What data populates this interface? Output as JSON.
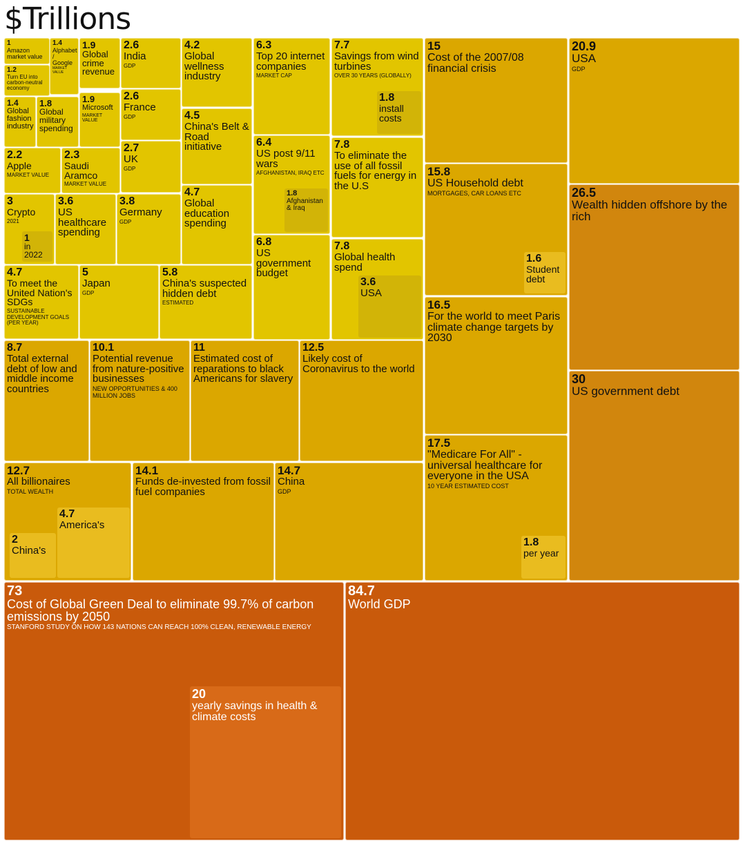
{
  "title": "$Trillions",
  "chart_data": {
    "type": "treemap",
    "unit": "$Trillions",
    "colors": {
      "light": "#e2c500",
      "mid": "#dba700",
      "deep": "#d1860d",
      "dark": "#c95a0b",
      "sub": "#e9bc1f",
      "sub_dark": "#d86a18"
    },
    "items": [
      {
        "value": "1",
        "label": "Amazon market value",
        "note": ""
      },
      {
        "value": "1.4",
        "label": "Alphabet / Google",
        "note": "market value"
      },
      {
        "value": "1.2",
        "label": "Turn EU into carbon-neutral economy",
        "note": ""
      },
      {
        "value": "1.4",
        "label": "Global fashion industry",
        "note": ""
      },
      {
        "value": "1.8",
        "label": "Global military spending",
        "note": ""
      },
      {
        "value": "1.9",
        "label": "Global crime revenue",
        "note": ""
      },
      {
        "value": "1.9",
        "label": "Microsoft",
        "note": "market value"
      },
      {
        "value": "2.6",
        "label": "India",
        "note": "GDP"
      },
      {
        "value": "2.6",
        "label": "France",
        "note": "GDP"
      },
      {
        "value": "2.7",
        "label": "UK",
        "note": "GDP"
      },
      {
        "value": "2.2",
        "label": "Apple",
        "note": "market value"
      },
      {
        "value": "2.3",
        "label": "Saudi Aramco",
        "note": "market value"
      },
      {
        "value": "3",
        "label": "Crypto",
        "note": "2021",
        "sub": {
          "value": "1",
          "label": "in 2022"
        }
      },
      {
        "value": "3.6",
        "label": "US healthcare spending",
        "note": ""
      },
      {
        "value": "3.8",
        "label": "Germany",
        "note": "GDP"
      },
      {
        "value": "4.2",
        "label": "Global wellness industry",
        "note": ""
      },
      {
        "value": "4.5",
        "label": "China's Belt & Road initiative",
        "note": ""
      },
      {
        "value": "4.7",
        "label": "Global education spending",
        "note": ""
      },
      {
        "value": "6.3",
        "label": "Top 20 internet companies",
        "note": "market cap"
      },
      {
        "value": "6.4",
        "label": "US post 9/11 wars",
        "note": "Afghanistan, Iraq etc",
        "sub": {
          "value": "1.8",
          "label": "Afghanistan & Iraq"
        }
      },
      {
        "value": "6.8",
        "label": "US government budget",
        "note": ""
      },
      {
        "value": "7.7",
        "label": "Savings from wind turbines",
        "note": "over 30 years (globally)",
        "sub": {
          "value": "1.8",
          "label": "install costs"
        }
      },
      {
        "value": "7.8",
        "label": "To eliminate the use of all fossil fuels for energy in the U.S",
        "note": ""
      },
      {
        "value": "7.8",
        "label": "Global health spend",
        "note": "",
        "sub": {
          "value": "3.6",
          "label": "USA"
        }
      },
      {
        "value": "4.7",
        "label": "To meet the United Nation's SDGs",
        "note": "sustainable development goals (per year)"
      },
      {
        "value": "5",
        "label": "Japan",
        "note": "GDP"
      },
      {
        "value": "5.8",
        "label": "China's suspected hidden debt",
        "note": "estimated"
      },
      {
        "value": "8.7",
        "label": "Total external debt of low and middle income countries",
        "note": ""
      },
      {
        "value": "10.1",
        "label": "Potential revenue from nature-positive businesses",
        "note": "new opportunities & 400 million jobs"
      },
      {
        "value": "11",
        "label": "Estimated cost of reparations to black Americans for slavery",
        "note": ""
      },
      {
        "value": "12.5",
        "label": "Likely cost of Coronavirus to the world",
        "note": ""
      },
      {
        "value": "12.7",
        "label": "All billionaires",
        "note": "total wealth",
        "subs": [
          {
            "value": "4.7",
            "label": "America's"
          },
          {
            "value": "2",
            "label": "China's"
          }
        ]
      },
      {
        "value": "14.1",
        "label": "Funds de-invested from fossil fuel companies",
        "note": ""
      },
      {
        "value": "14.7",
        "label": "China",
        "note": "GDP"
      },
      {
        "value": "15",
        "label": "Cost of the 2007/08 financial crisis",
        "note": ""
      },
      {
        "value": "15.8",
        "label": "US Household debt",
        "note": "mortgages, car loans etc",
        "sub": {
          "value": "1.6",
          "label": "Student debt"
        }
      },
      {
        "value": "16.5",
        "label": "For the world to meet Paris climate change targets by 2030",
        "note": ""
      },
      {
        "value": "17.5",
        "label": "\"Medicare For All\" - universal healthcare for everyone in the USA",
        "note": "10 year estimated cost",
        "sub": {
          "value": "1.8",
          "label": "per year"
        }
      },
      {
        "value": "20.9",
        "label": "USA",
        "note": "GDP"
      },
      {
        "value": "26.5",
        "label": "Wealth hidden offshore by the rich",
        "note": ""
      },
      {
        "value": "30",
        "label": "US government debt",
        "note": ""
      },
      {
        "value": "73",
        "label": "Cost of Global Green Deal to eliminate 99.7% of carbon emissions by 2050",
        "note": "Stanford study on how 143 nations can reach 100% clean, renewable energy",
        "sub": {
          "value": "20",
          "label": "yearly savings in health & climate costs"
        }
      },
      {
        "value": "84.7",
        "label": "World GDP",
        "note": ""
      }
    ]
  }
}
